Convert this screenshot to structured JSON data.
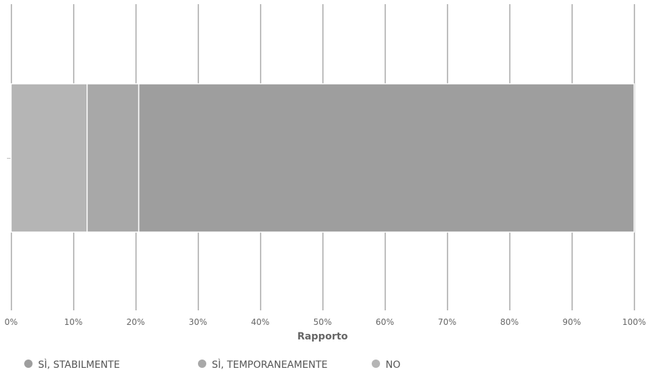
{
  "chart_data": {
    "type": "bar",
    "orientation": "horizontal",
    "stacked": true,
    "categories": [
      ""
    ],
    "series": [
      {
        "name": "NO",
        "values": [
          12.2
        ],
        "color": "#b5b5b5"
      },
      {
        "name": "SÌ, TEMPORANEAMENTE",
        "values": [
          8.3
        ],
        "color": "#a8a8a8"
      },
      {
        "name": "SÌ, STABILMENTE",
        "values": [
          79.5
        ],
        "color": "#9e9e9e"
      }
    ],
    "legend_order": [
      "SÌ, STABILMENTE",
      "SÌ, TEMPORANEAMENTE",
      "NO"
    ],
    "xlabel": "Rapporto",
    "ylabel": "",
    "xlim": [
      0,
      100
    ],
    "x_ticks": [
      "0%",
      "10%",
      "20%",
      "30%",
      "40%",
      "50%",
      "60%",
      "70%",
      "80%",
      "90%",
      "100%"
    ],
    "grid": true,
    "legend_position": "bottom-left"
  }
}
